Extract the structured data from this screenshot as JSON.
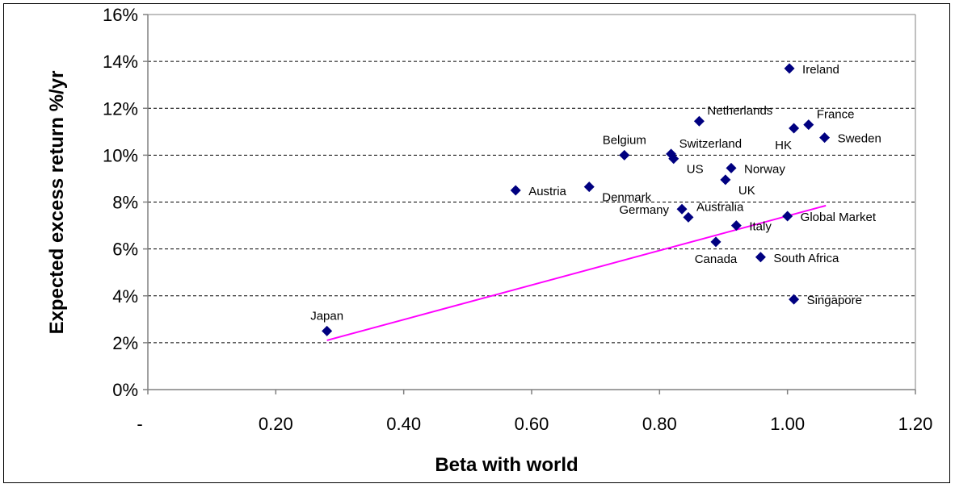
{
  "chart_data": {
    "type": "scatter",
    "title": "",
    "xlabel": "Beta with world",
    "ylabel": "Expected excess return %/yr",
    "xlim": [
      0,
      1.2
    ],
    "ylim": [
      0,
      16
    ],
    "x_ticks": [
      {
        "value": 0.0,
        "label": "-"
      },
      {
        "value": 0.2,
        "label": "0.20"
      },
      {
        "value": 0.4,
        "label": "0.40"
      },
      {
        "value": 0.6,
        "label": "0.60"
      },
      {
        "value": 0.8,
        "label": "0.80"
      },
      {
        "value": 1.0,
        "label": "1.00"
      },
      {
        "value": 1.2,
        "label": "1.20"
      }
    ],
    "y_ticks": [
      {
        "value": 0,
        "label": "0%"
      },
      {
        "value": 2,
        "label": "2%"
      },
      {
        "value": 4,
        "label": "4%"
      },
      {
        "value": 6,
        "label": "6%"
      },
      {
        "value": 8,
        "label": "8%"
      },
      {
        "value": 10,
        "label": "10%"
      },
      {
        "value": 12,
        "label": "12%"
      },
      {
        "value": 14,
        "label": "14%"
      },
      {
        "value": 16,
        "label": "16%"
      }
    ],
    "grid": {
      "horizontal": true,
      "style": "dashed"
    },
    "legend": "none",
    "points": [
      {
        "label": "Japan",
        "x": 0.28,
        "y": 2.5,
        "label_side": "above"
      },
      {
        "label": "Austria",
        "x": 0.575,
        "y": 8.5,
        "label_side": "right"
      },
      {
        "label": "Denmark",
        "x": 0.69,
        "y": 8.65,
        "label_side": "right-below"
      },
      {
        "label": "Belgium",
        "x": 0.745,
        "y": 10.0,
        "label_side": "above"
      },
      {
        "label": "Switzerland",
        "x": 0.818,
        "y": 10.05,
        "label_side": "right-above"
      },
      {
        "label": "US",
        "x": 0.822,
        "y": 9.85,
        "label_side": "right-below"
      },
      {
        "label": "Netherlands",
        "x": 0.862,
        "y": 11.45,
        "label_side": "right-above"
      },
      {
        "label": "Germany",
        "x": 0.835,
        "y": 7.7,
        "label_side": "left"
      },
      {
        "label": "Australia",
        "x": 0.845,
        "y": 7.35,
        "label_side": "right-above"
      },
      {
        "label": "Canada",
        "x": 0.888,
        "y": 6.3,
        "label_side": "below"
      },
      {
        "label": "Norway",
        "x": 0.912,
        "y": 9.45,
        "label_side": "right"
      },
      {
        "label": "UK",
        "x": 0.903,
        "y": 8.95,
        "label_side": "right-below"
      },
      {
        "label": "Italy",
        "x": 0.92,
        "y": 7.0,
        "label_side": "right"
      },
      {
        "label": "South Africa",
        "x": 0.958,
        "y": 5.65,
        "label_side": "right"
      },
      {
        "label": "Ireland",
        "x": 1.003,
        "y": 13.7,
        "label_side": "right"
      },
      {
        "label": "HK",
        "x": 1.01,
        "y": 11.15,
        "label_side": "below-left"
      },
      {
        "label": "France",
        "x": 1.033,
        "y": 11.3,
        "label_side": "right-above"
      },
      {
        "label": "Sweden",
        "x": 1.058,
        "y": 10.75,
        "label_side": "right"
      },
      {
        "label": "Global Market",
        "x": 1.0,
        "y": 7.4,
        "label_side": "right"
      },
      {
        "label": "Singapore",
        "x": 1.01,
        "y": 3.85,
        "label_side": "right"
      }
    ],
    "trend_line": {
      "x": [
        0.28,
        1.06
      ],
      "y": [
        2.1,
        7.85
      ]
    },
    "colors": {
      "marker": "#000080",
      "trend_line": "#FF00FF",
      "grid": "#000000",
      "axis": "#808080"
    }
  }
}
